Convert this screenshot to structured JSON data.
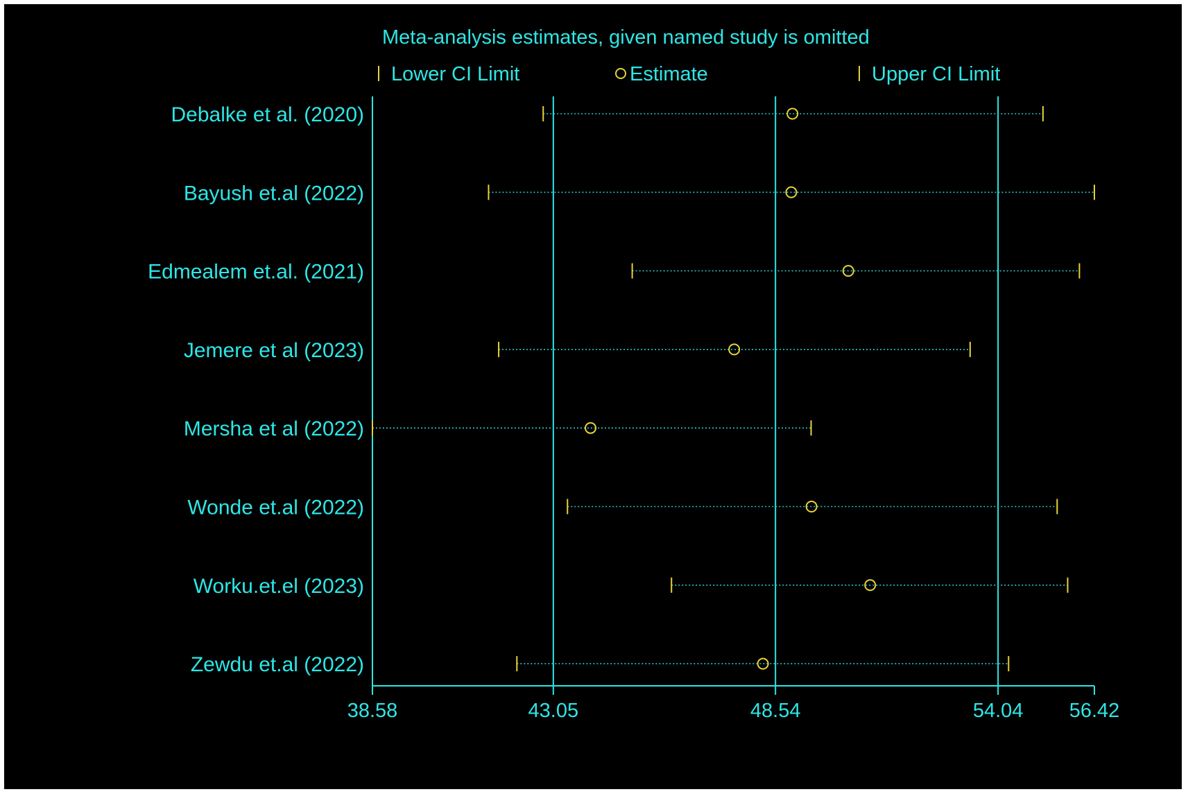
{
  "chart_data": {
    "type": "scatter",
    "title": "Meta-analysis estimates, given named study is omitted",
    "legend": {
      "placement": "top",
      "entries": [
        "Lower CI Limit",
        "Estimate",
        "Upper CI Limit"
      ]
    },
    "x_ticks": [
      "38.58",
      "43.05",
      "48.54",
      "54.04",
      "56.42"
    ],
    "x_tick_values": [
      38.58,
      43.05,
      48.54,
      54.04,
      56.42
    ],
    "reference_lines": [
      43.05,
      48.54,
      54.04
    ],
    "xlim": [
      38.58,
      56.42
    ],
    "studies": [
      {
        "label": "Debalke et al. (2020)",
        "lower": 42.8,
        "estimate": 48.96,
        "upper": 55.15
      },
      {
        "label": "Bayush et.al (2022)",
        "lower": 41.45,
        "estimate": 48.93,
        "upper": 56.42
      },
      {
        "label": "Edmealem et.al. (2021)",
        "lower": 45.0,
        "estimate": 50.34,
        "upper": 56.05
      },
      {
        "label": "Jemere et al (2023)",
        "lower": 41.7,
        "estimate": 47.52,
        "upper": 53.35
      },
      {
        "label": "Mersha et al (2022)",
        "lower": 38.58,
        "estimate": 43.97,
        "upper": 49.42
      },
      {
        "label": "Wonde et.al (2022)",
        "lower": 43.4,
        "estimate": 49.43,
        "upper": 55.5
      },
      {
        "label": "Worku.et.el (2023)",
        "lower": 45.97,
        "estimate": 50.88,
        "upper": 55.76
      },
      {
        "label": "Zewdu et.al (2022)",
        "lower": 42.15,
        "estimate": 48.23,
        "upper": 54.3
      }
    ],
    "colors": {
      "axis": "#2ee6e6",
      "text": "#2ee6e6",
      "marker": "#e8d23a",
      "ci_line": "#2ec8c8",
      "background": "#000000"
    }
  }
}
